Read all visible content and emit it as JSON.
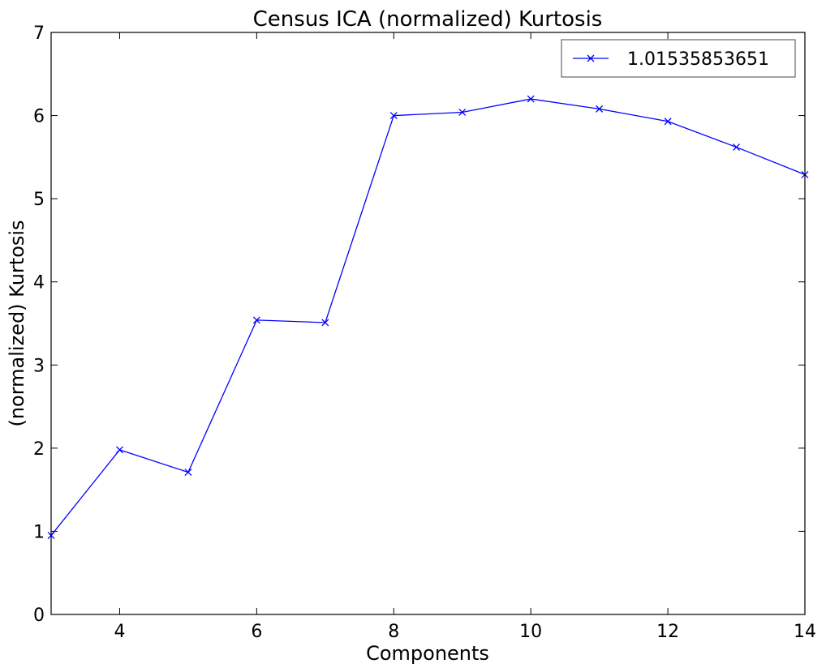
{
  "chart_data": {
    "type": "line",
    "title": "Census ICA (normalized) Kurtosis",
    "xlabel": "Components",
    "ylabel": "(normalized) Kurtosis",
    "xlim": [
      3,
      14
    ],
    "ylim": [
      0,
      7
    ],
    "xticks": [
      4,
      6,
      8,
      10,
      12,
      14
    ],
    "yticks": [
      0,
      1,
      2,
      3,
      4,
      5,
      6,
      7
    ],
    "grid": false,
    "legend_position": "top-right",
    "series": [
      {
        "name": "1.01535853651",
        "color": "#0000ff",
        "marker": "x",
        "x": [
          3,
          4,
          5,
          6,
          7,
          8,
          9,
          10,
          11,
          12,
          13,
          14
        ],
        "y": [
          0.95,
          1.98,
          1.71,
          3.54,
          3.51,
          6.0,
          6.04,
          6.2,
          6.08,
          5.93,
          5.62,
          5.29
        ]
      }
    ]
  }
}
